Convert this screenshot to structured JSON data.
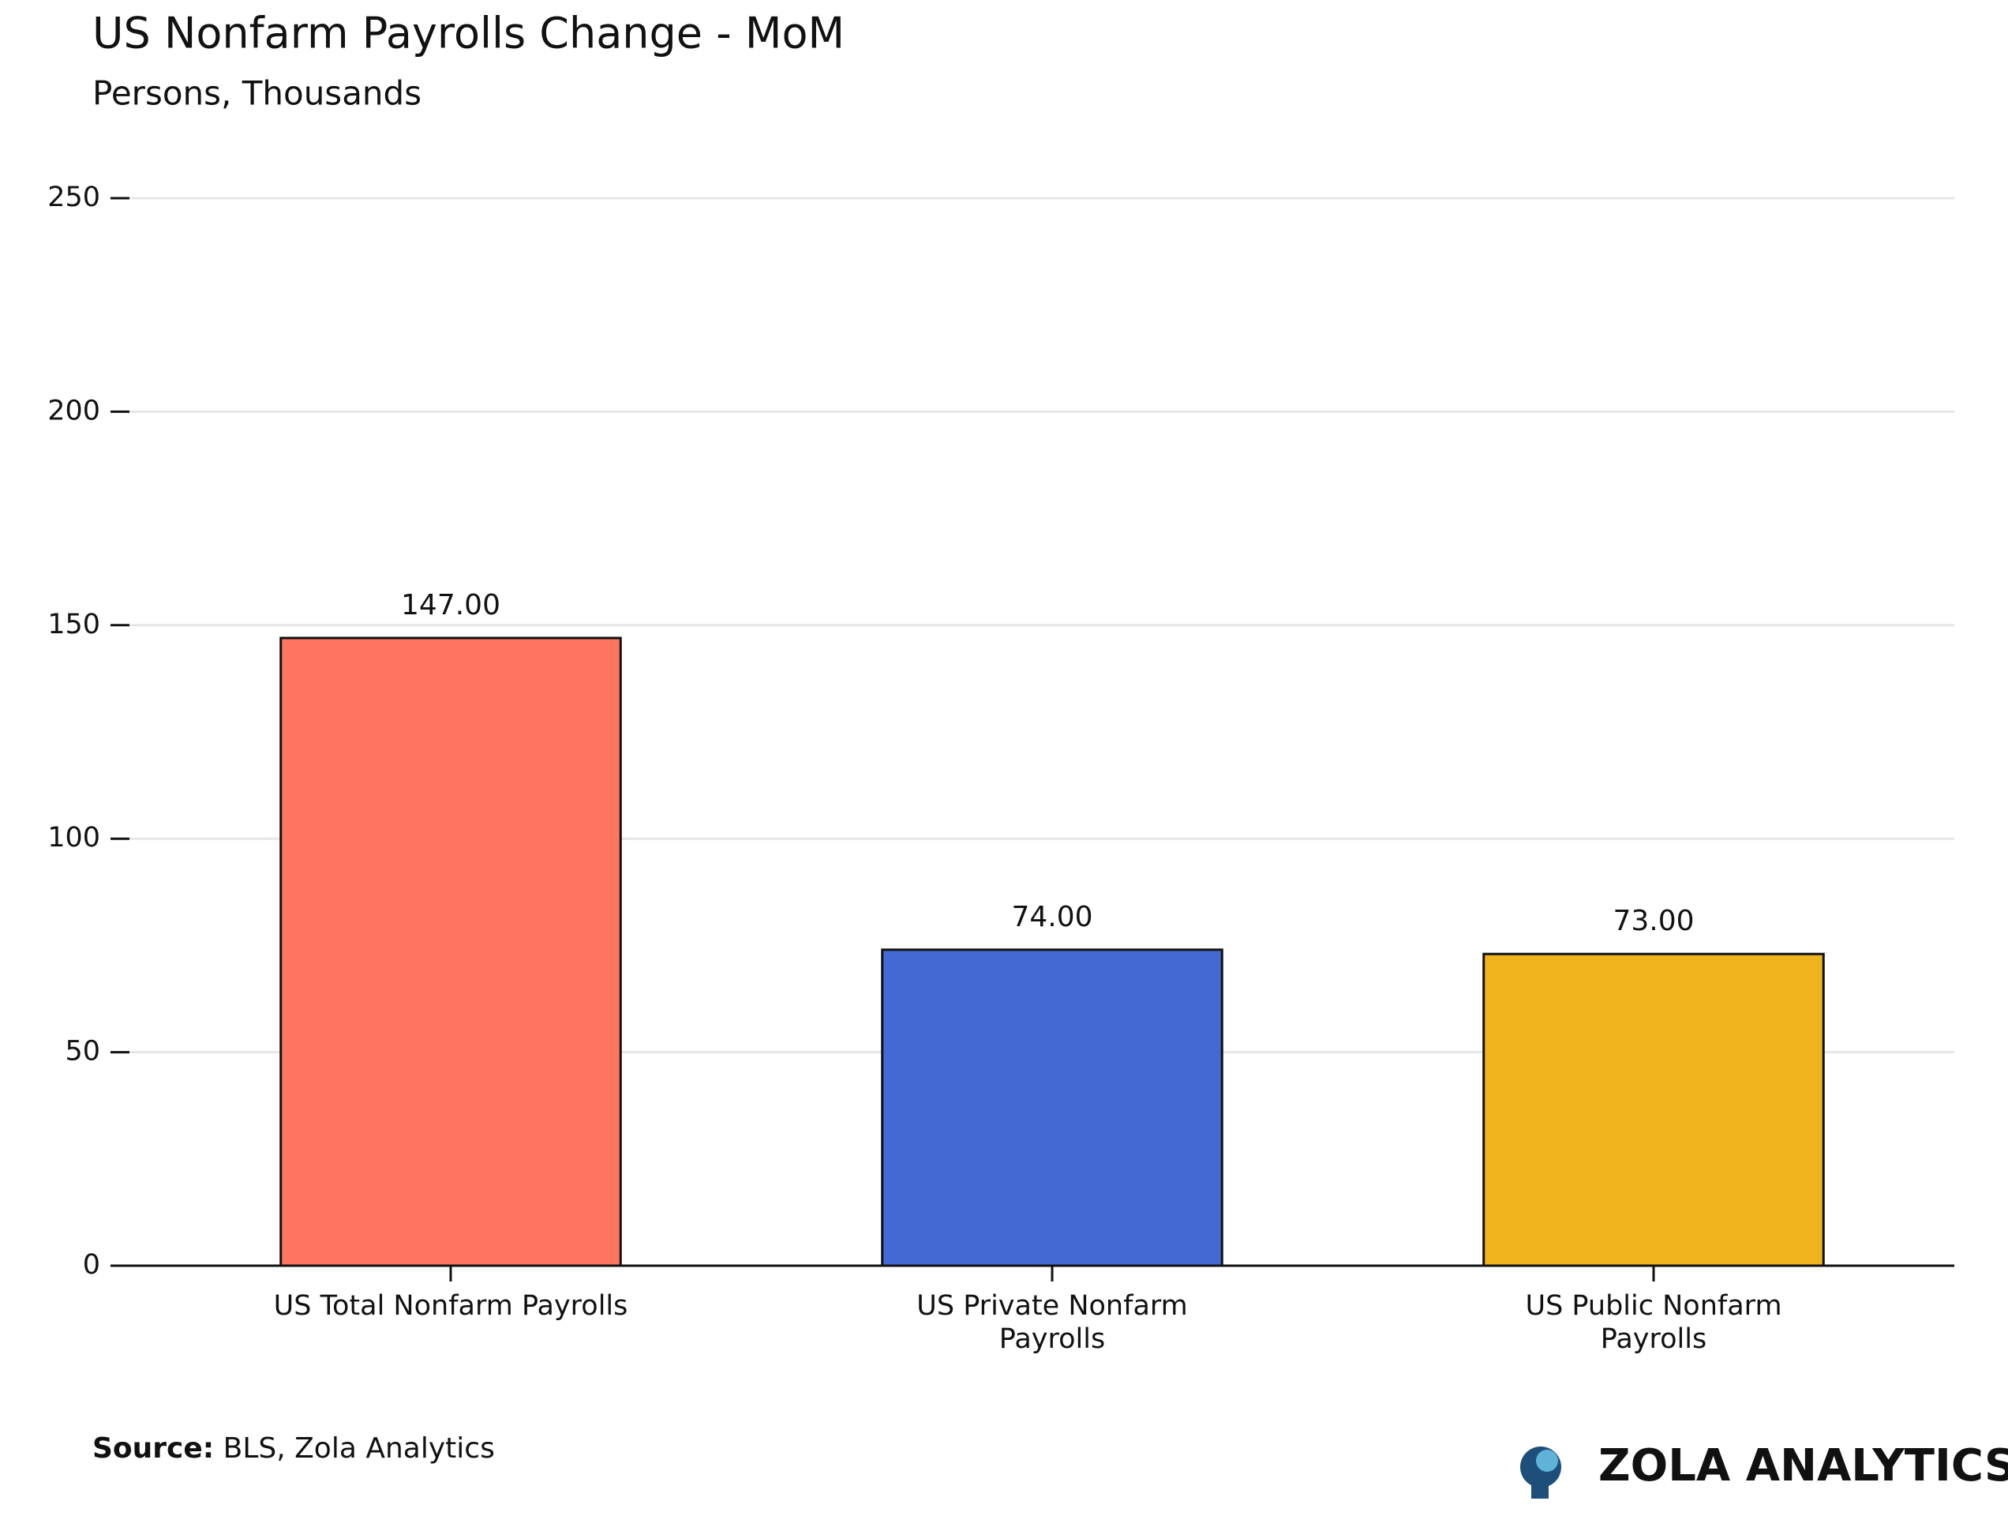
{
  "chart_data": {
    "type": "bar",
    "title": "US Nonfarm Payrolls Change - MoM",
    "subtitle": "Persons, Thousands",
    "categories": [
      "US Total Nonfarm Payrolls",
      "US Private Nonfarm Payrolls",
      "US Public Nonfarm Payrolls"
    ],
    "values": [
      147,
      74,
      73
    ],
    "value_labels": [
      "147.00",
      "74.00",
      "73.00"
    ],
    "colors": [
      "#ff7560",
      "#436ad3",
      "#eeb31d"
    ],
    "ylim": [
      0,
      250
    ],
    "yticks": [
      0,
      50,
      100,
      150,
      200,
      250
    ],
    "grid": true
  },
  "footer": {
    "source_label": "Source:",
    "source": "BLS, Zola Analytics",
    "brand": "ZOLA ANALYTICS"
  }
}
